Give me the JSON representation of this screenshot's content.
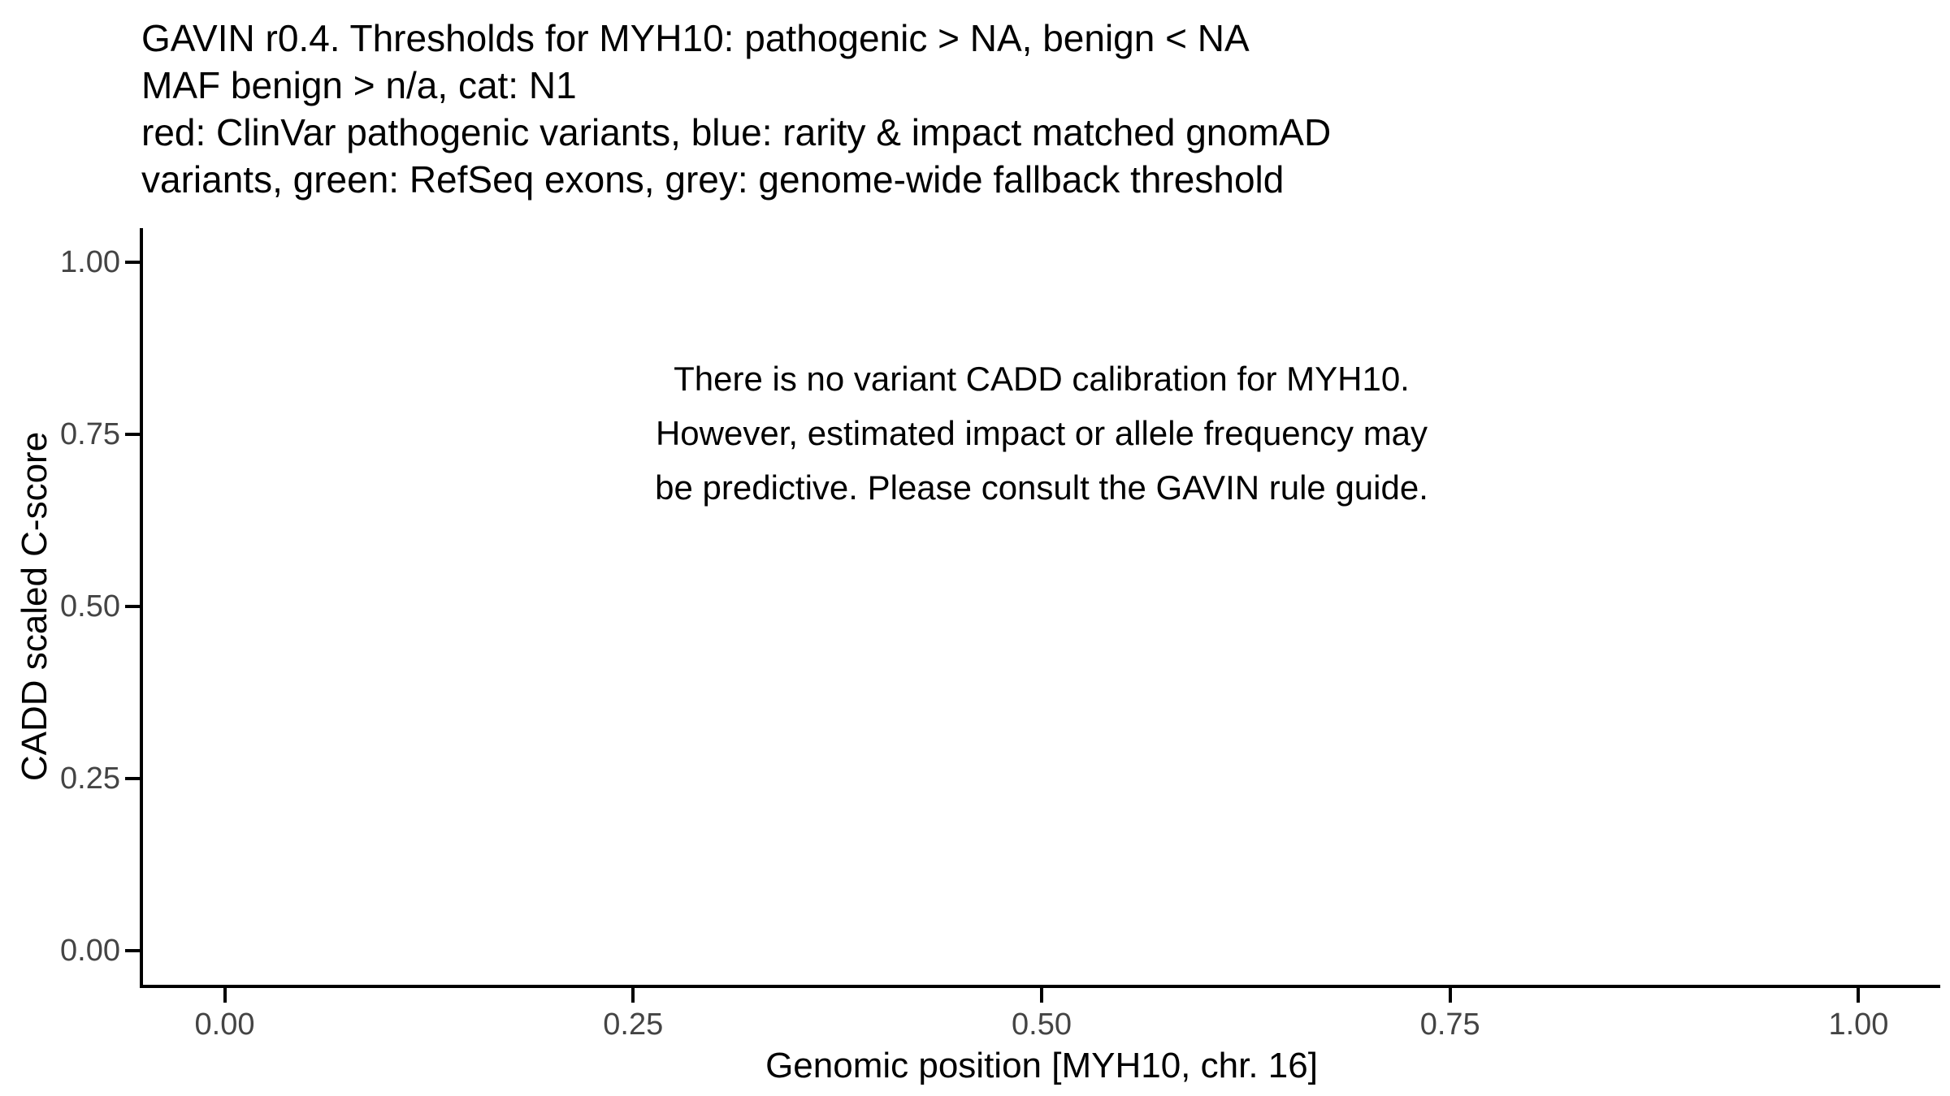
{
  "chart_data": {
    "type": "scatter",
    "title_lines": [
      "GAVIN r0.4. Thresholds for MYH10: pathogenic > NA, benign < NA",
      "MAF benign > n/a, cat: N1",
      "red: ClinVar pathogenic variants, blue: rarity & impact matched gnomAD",
      "variants, green: RefSeq exons, grey: genome-wide fallback threshold"
    ],
    "xlabel": "Genomic position [MYH10, chr. 16]",
    "ylabel": "CADD scaled C-score",
    "xlim": [
      0,
      1
    ],
    "ylim": [
      0,
      1
    ],
    "x_ticks": [
      "0.00",
      "0.25",
      "0.50",
      "0.75",
      "1.00"
    ],
    "y_ticks": [
      "0.00",
      "0.25",
      "0.50",
      "0.75",
      "1.00"
    ],
    "grid": false,
    "legend": "none",
    "points": [],
    "annotation_lines": [
      "There is no variant CADD calibration for MYH10.",
      "However, estimated impact or allele frequency may",
      "be predictive. Please consult the GAVIN rule guide."
    ],
    "colors": {
      "axis_line": "#000000",
      "tick_label": "#444444",
      "title_text": "#000000",
      "axis_title_text": "#000000",
      "annotation_text": "#000000",
      "background": "#ffffff"
    }
  }
}
